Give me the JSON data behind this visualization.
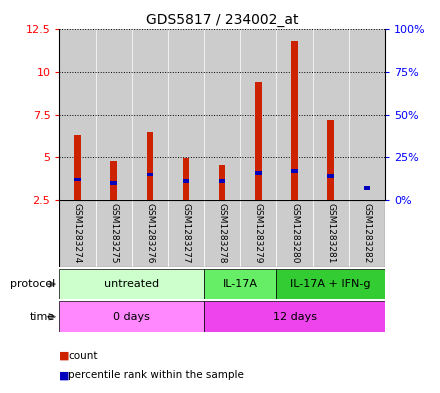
{
  "title": "GDS5817 / 234002_at",
  "samples": [
    "GSM1283274",
    "GSM1283275",
    "GSM1283276",
    "GSM1283277",
    "GSM1283278",
    "GSM1283279",
    "GSM1283280",
    "GSM1283281",
    "GSM1283282"
  ],
  "counts": [
    6.3,
    4.8,
    6.5,
    4.95,
    4.55,
    9.4,
    11.8,
    7.2,
    2.5
  ],
  "percentile_values": [
    12,
    10,
    15,
    11,
    11,
    16,
    17,
    14,
    7
  ],
  "count_color": "#cc2200",
  "percentile_color": "#0000bb",
  "ylim_left": [
    2.5,
    12.5
  ],
  "ylim_right": [
    0,
    100
  ],
  "yticks_left": [
    2.5,
    5.0,
    7.5,
    10.0,
    12.5
  ],
  "yticks_right": [
    0,
    25,
    50,
    75,
    100
  ],
  "ytick_labels_left": [
    "2.5",
    "5",
    "7.5",
    "10",
    "12.5"
  ],
  "ytick_labels_right": [
    "0%",
    "25%",
    "50%",
    "75%",
    "100%"
  ],
  "protocol_groups": [
    {
      "label": "untreated",
      "start": 0,
      "end": 4,
      "color": "#ccffcc"
    },
    {
      "label": "IL-17A",
      "start": 4,
      "end": 6,
      "color": "#66ee66"
    },
    {
      "label": "IL-17A + IFN-g",
      "start": 6,
      "end": 9,
      "color": "#33cc33"
    }
  ],
  "time_groups": [
    {
      "label": "0 days",
      "start": 0,
      "end": 4,
      "color": "#ff88ff"
    },
    {
      "label": "12 days",
      "start": 4,
      "end": 9,
      "color": "#ee44ee"
    }
  ],
  "bar_bg_color": "#cccccc",
  "bar_border_color": "#aaaaaa",
  "legend_count": "count",
  "legend_percentile": "percentile rank within the sample",
  "ybaseline": 2.5,
  "label_protocol": "protocol",
  "label_time": "time"
}
